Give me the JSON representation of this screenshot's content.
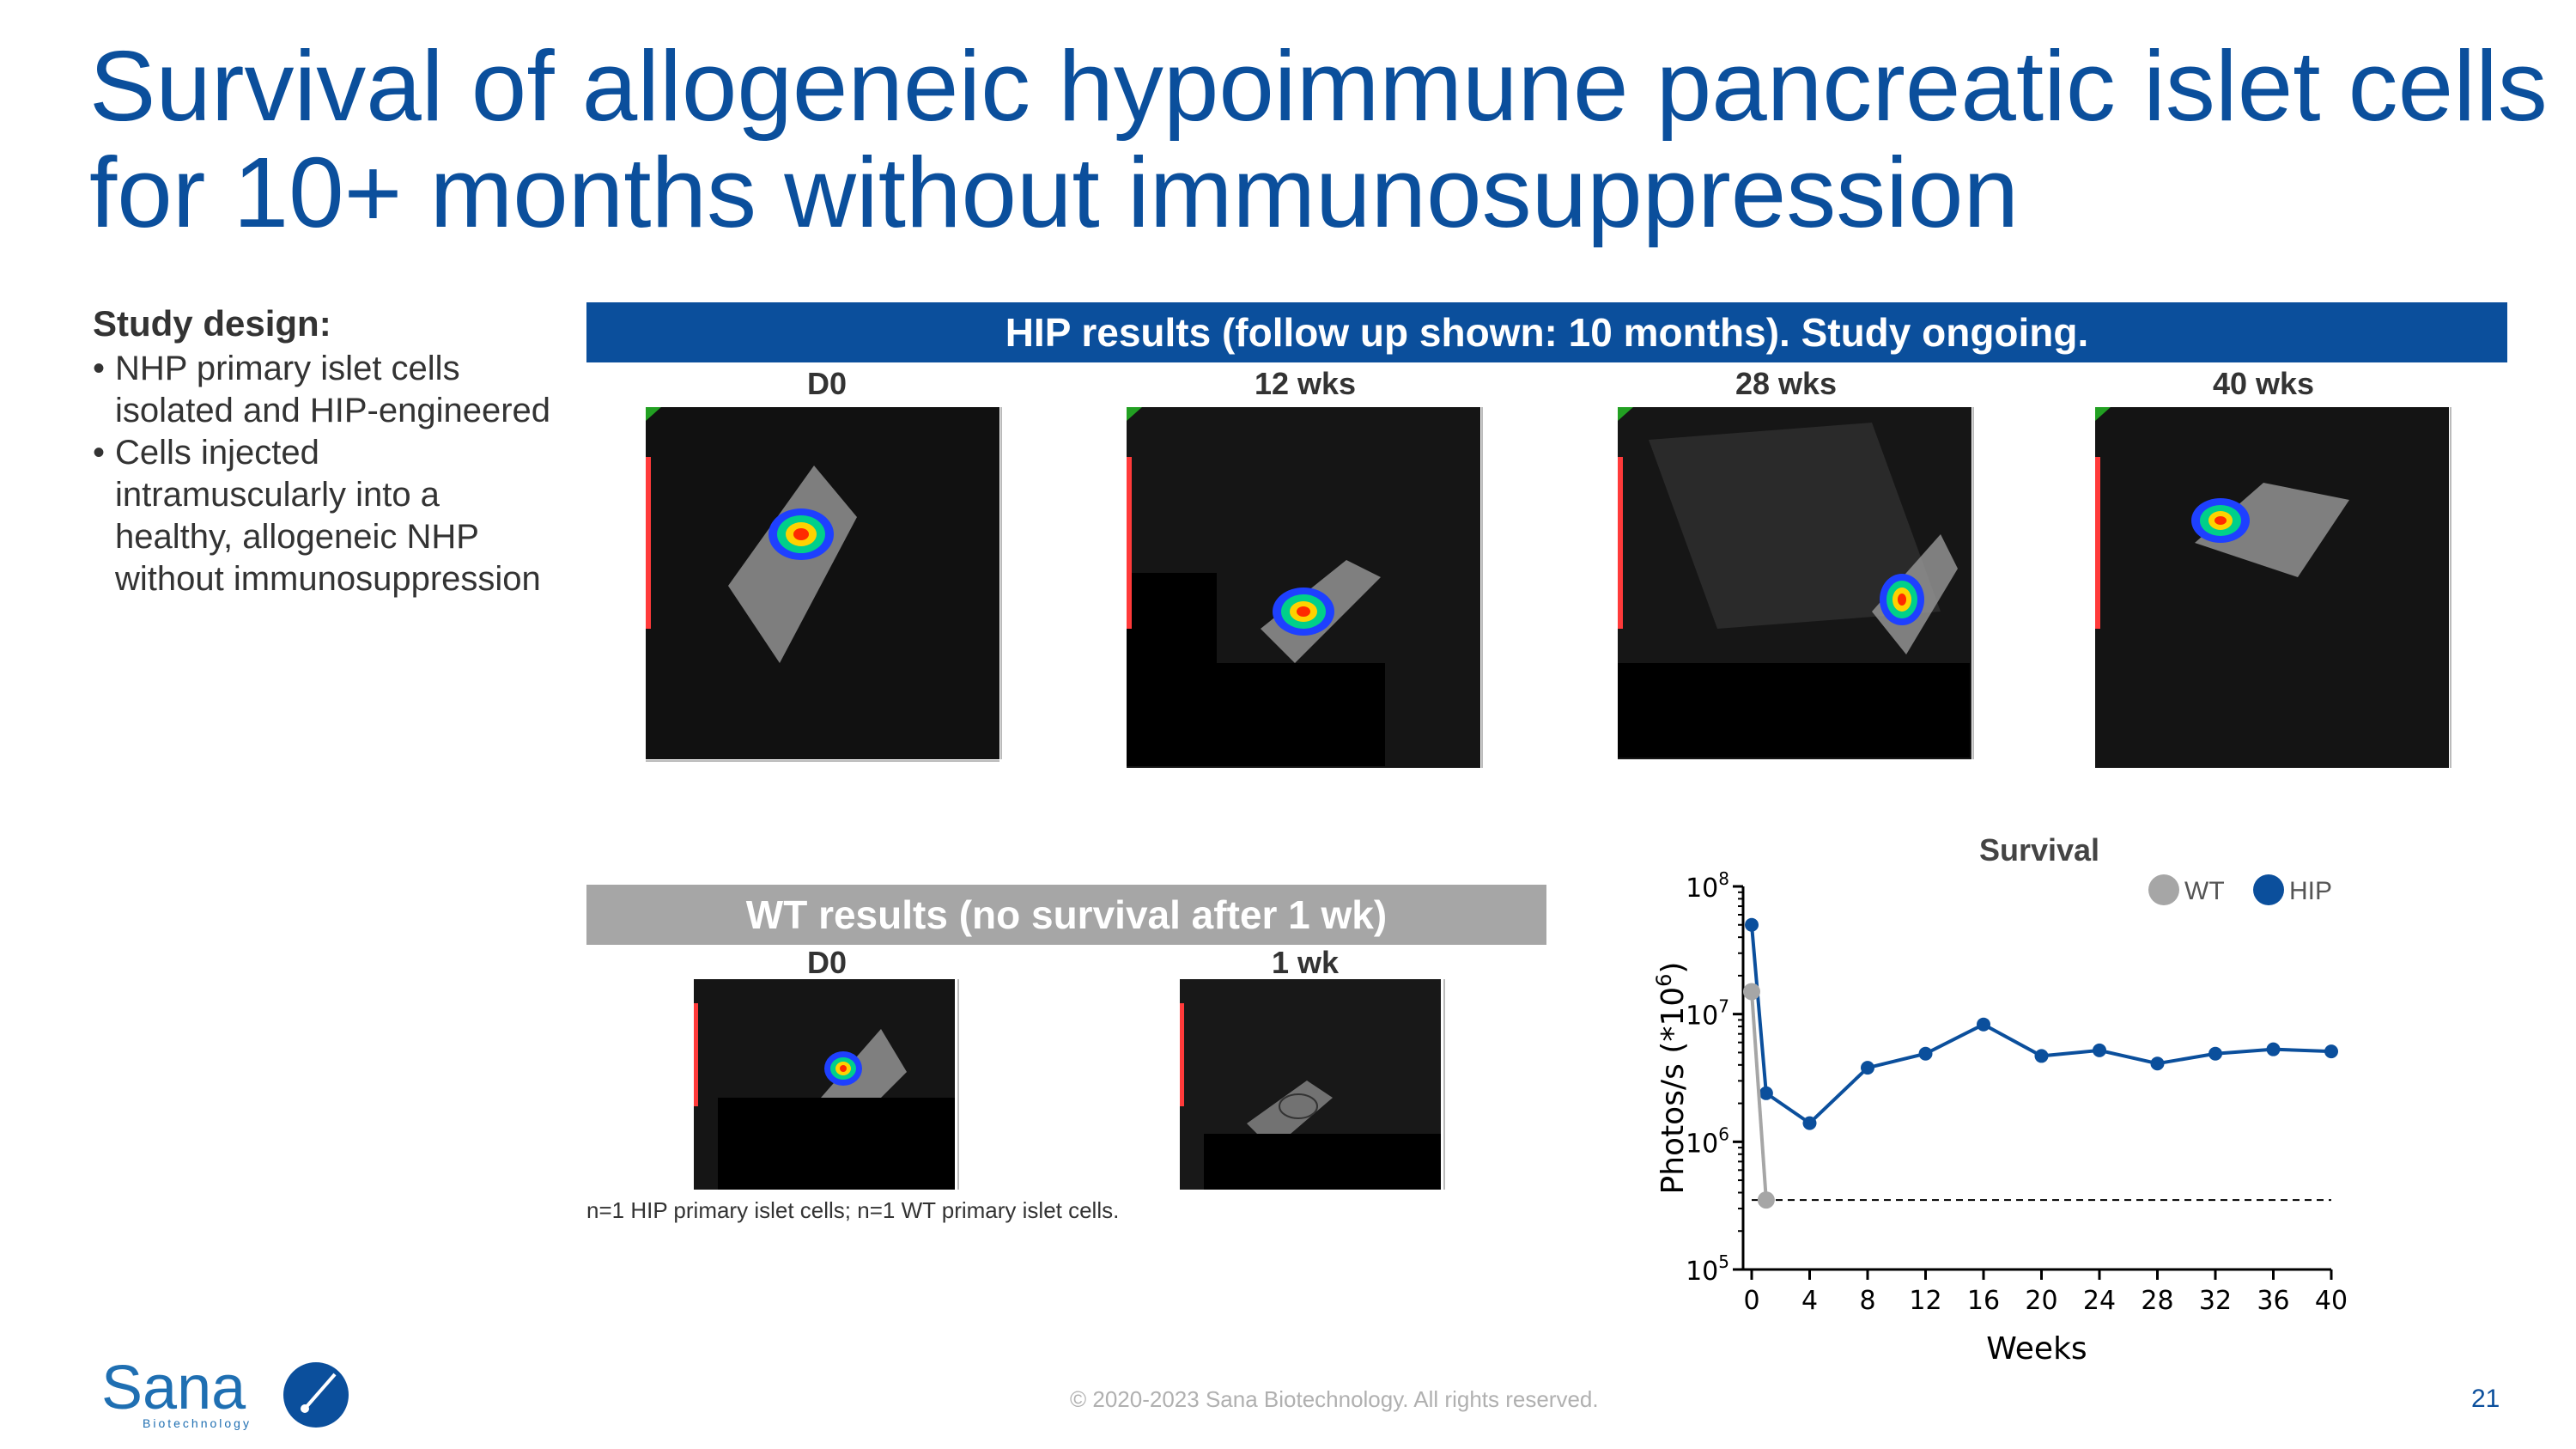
{
  "slide": {
    "title_line1": "Survival of allogeneic hypoimmune pancreatic islet cells",
    "title_line2": "for 10+ months without immunosuppression",
    "page_number": "21",
    "copyright": "© 2020-2023 Sana Biotechnology. All rights reserved."
  },
  "study_design": {
    "heading": "Study design:",
    "bullets": [
      {
        "lines": [
          "NHP primary islet cells",
          "isolated and HIP-engineered"
        ]
      },
      {
        "lines": [
          "Cells injected",
          "intramuscularly into a",
          "healthy, allogeneic NHP",
          "without immunosuppression"
        ]
      }
    ]
  },
  "hip_section": {
    "banner": "HIP results (follow up shown: 10 months). Study ongoing.",
    "panels": [
      "D0",
      "12 wks",
      "28 wks",
      "40 wks"
    ]
  },
  "wt_section": {
    "banner": "WT results (no survival after 1 wk)",
    "panels": [
      "D0",
      "1 wk"
    ]
  },
  "footnote": "n=1 HIP primary islet cells; n=1 WT primary islet cells.",
  "logo": {
    "text": "Sana",
    "subtext": "Biotechnology"
  },
  "chart_data": {
    "type": "line",
    "title": "Survival",
    "xlabel": "Weeks",
    "ylabel": "Photos/s (*10",
    "ylabel_sup": "6",
    "ylabel_close": ")",
    "y_scale": "log",
    "ylim": [
      100000,
      100000000
    ],
    "y_ticks": [
      {
        "base": "10",
        "exp": "5"
      },
      {
        "base": "10",
        "exp": "6"
      },
      {
        "base": "10",
        "exp": "7"
      },
      {
        "base": "10",
        "exp": "8"
      }
    ],
    "xlim": [
      0,
      40
    ],
    "x_ticks": [
      0,
      4,
      8,
      12,
      16,
      20,
      24,
      28,
      32,
      36,
      40
    ],
    "legend_position": "top-right",
    "threshold": {
      "value": 350000,
      "style": "dashed",
      "x_range": [
        0,
        40
      ]
    },
    "series": [
      {
        "name": "WT",
        "color": "#a6a6a6",
        "x": [
          0,
          1
        ],
        "y": [
          15000000,
          350000
        ]
      },
      {
        "name": "HIP",
        "color": "#0b4f9c",
        "x": [
          0,
          1,
          4,
          8,
          12,
          16,
          20,
          24,
          28,
          32,
          36,
          40
        ],
        "y": [
          50000000,
          2400000,
          1400000,
          3800000,
          4900000,
          8300000,
          4700000,
          5200000,
          4100000,
          4900000,
          5300000,
          5100000
        ]
      }
    ]
  }
}
